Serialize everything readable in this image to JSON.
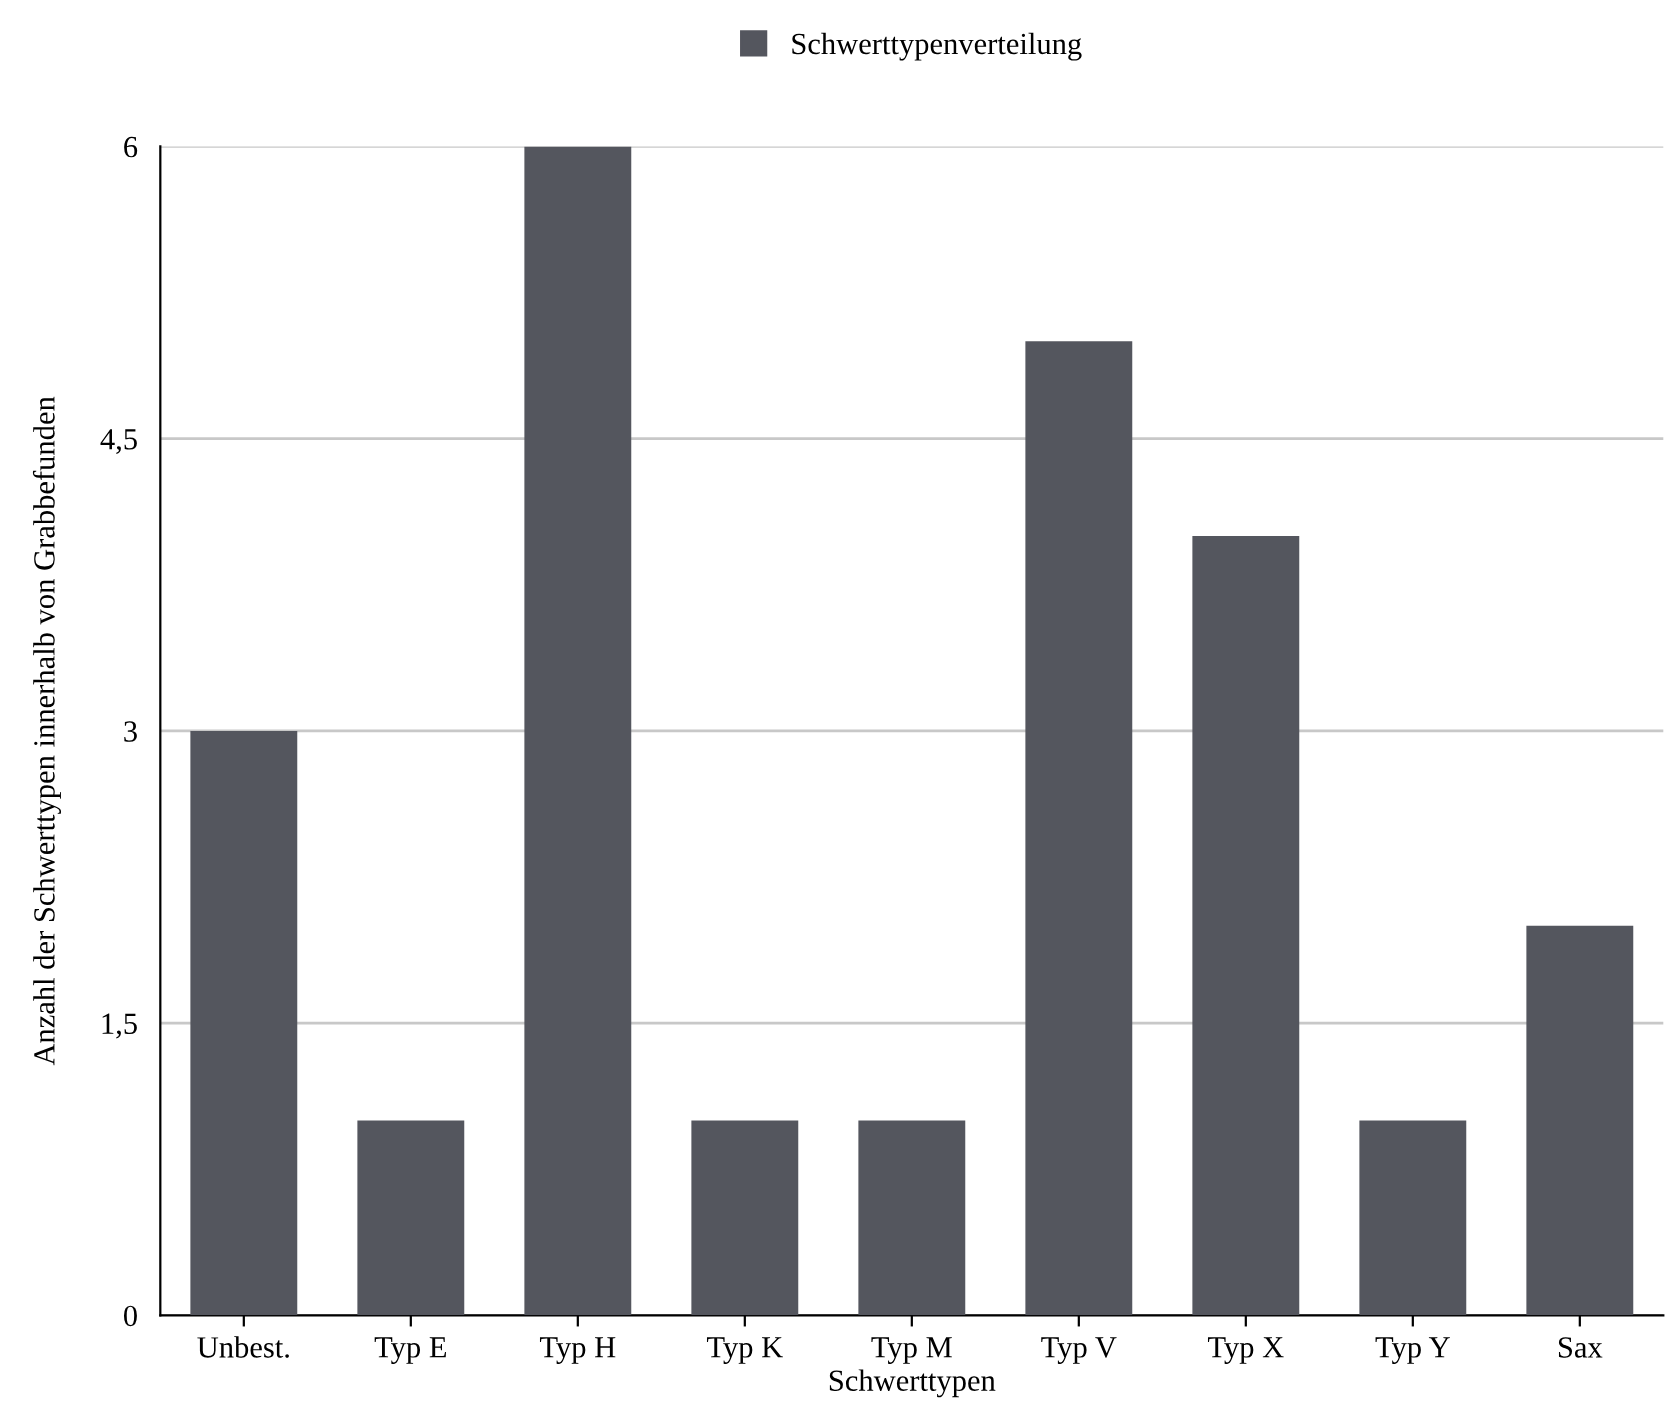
{
  "chart_data": {
    "type": "bar",
    "xlabel": "Schwerttypen",
    "ylabel": "Anzahl der Schwerttypen innerhalb von Grabbefunden",
    "categories": [
      "Unbest.",
      "Typ E",
      "Typ H",
      "Typ K",
      "Typ M",
      "Typ V",
      "Typ X",
      "Typ Y",
      "Sax"
    ],
    "series": [
      {
        "name": "Schwerttypenverteilung",
        "color": "#54565e",
        "values": [
          3,
          1,
          6,
          1,
          1,
          5,
          4,
          1,
          2
        ]
      }
    ],
    "ylim": [
      0,
      6
    ],
    "yticks": [
      0,
      {
        "value": 1.5,
        "label": "1,5"
      },
      3,
      {
        "value": 4.5,
        "label": "4,5"
      },
      6
    ],
    "grid": "y",
    "legend": "top"
  }
}
